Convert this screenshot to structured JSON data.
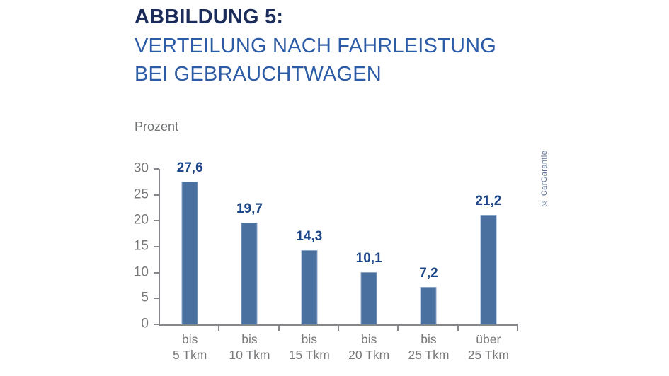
{
  "header": {
    "title_bold": "ABBILDUNG 5:",
    "subtitle": "VERTEILUNG NACH FAHRLEISTUNG BEI GEBRAUCHTWAGEN"
  },
  "chart_data": {
    "type": "bar",
    "title": "ABBILDUNG 5: VERTEILUNG NACH FAHRLEISTUNG BEI GEBRAUCHTWAGEN",
    "xlabel": "",
    "ylabel": "Prozent",
    "unit_label": "Prozent",
    "categories": [
      {
        "line1": "bis",
        "line2": "5 Tkm"
      },
      {
        "line1": "bis",
        "line2": "10 Tkm"
      },
      {
        "line1": "bis",
        "line2": "15 Tkm"
      },
      {
        "line1": "bis",
        "line2": "20 Tkm"
      },
      {
        "line1": "bis",
        "line2": "25 Tkm"
      },
      {
        "line1": "über",
        "line2": "25 Tkm"
      }
    ],
    "values": [
      27.6,
      19.7,
      14.3,
      10.1,
      7.2,
      21.2
    ],
    "value_labels": [
      "27,6",
      "19,7",
      "14,3",
      "10,1",
      "7,2",
      "21,2"
    ],
    "y_ticks": [
      0,
      5,
      10,
      15,
      20,
      25,
      30
    ],
    "ylim": [
      0,
      30
    ],
    "grid": "off",
    "legend": "none",
    "bar_color": "#4a70a0",
    "bar_border_color": "#8ba5c7",
    "value_label_color": "#1c4687",
    "axis_color": "#85878a",
    "tick_label_color": "#77787a",
    "title_color": "#1b2c5a",
    "subtitle_color": "#2d5ca6"
  },
  "credit": "© CarGarantie"
}
